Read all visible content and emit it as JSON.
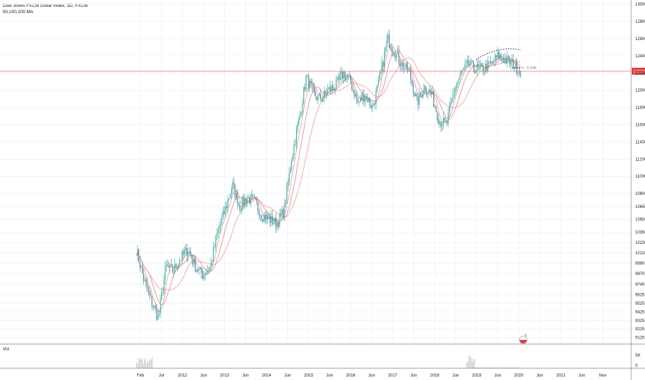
{
  "legend": {
    "title": "Dow Jones FXCM Dollar Index, 3D, FXCM",
    "ma": "50,100,200 MA"
  },
  "volume_label": "Vol",
  "badges": {
    "price": "12222",
    "measure": "0.23K",
    "event_close": "x"
  },
  "colors": {
    "up": "#26a69a",
    "down": "#3e7b8c",
    "ma_fast": "#f28b82",
    "ma_slow": "#e57373",
    "price_line": "#ef5350",
    "price_badge": "#e53935",
    "volume": "#c8c8c8",
    "grid": "#f0f3fa",
    "axis_text": "#131722"
  },
  "chart_data": {
    "type": "line",
    "xlabel": "",
    "ylabel": "",
    "x_ticks": [
      "Feb",
      "Jul",
      "2012",
      "Jun",
      "2013",
      "Jun",
      "2014",
      "Jun",
      "2015",
      "Jun",
      "2016",
      "Jun",
      "2017",
      "Jun",
      "2018",
      "Jun",
      "2019",
      "Jun",
      "2020",
      "Jun",
      "2021",
      "Jun",
      "Nov"
    ],
    "y_ticks": [
      9125,
      9225,
      9325,
      9425,
      9525,
      9625,
      9745,
      9870,
      9990,
      10110,
      10230,
      10350,
      10500,
      10650,
      10800,
      11000,
      11200,
      11400,
      11600,
      11800,
      12000,
      12200,
      12400,
      12600,
      12800,
      13000
    ],
    "ylim": [
      9050,
      13050
    ],
    "volume_ticks": [
      "5K",
      "0"
    ],
    "x": [
      "2011-02",
      "2011-05",
      "2011-07",
      "2011-09",
      "2011-12",
      "2012-02",
      "2012-04",
      "2012-06",
      "2012-08",
      "2012-10",
      "2012-12",
      "2013-02",
      "2013-04",
      "2013-06",
      "2013-08",
      "2013-10",
      "2013-12",
      "2014-02",
      "2014-04",
      "2014-06",
      "2014-08",
      "2014-10",
      "2014-12",
      "2015-02",
      "2015-04",
      "2015-06",
      "2015-08",
      "2015-10",
      "2015-12",
      "2016-02",
      "2016-04",
      "2016-06",
      "2016-08",
      "2016-10",
      "2016-12",
      "2017-02",
      "2017-04",
      "2017-06",
      "2017-08",
      "2017-10",
      "2017-12",
      "2018-02",
      "2018-04",
      "2018-06",
      "2018-08",
      "2018-10",
      "2018-12",
      "2019-02",
      "2019-04",
      "2019-06",
      "2019-08",
      "2019-10",
      "2019-12"
    ],
    "series": [
      {
        "values": [
          10150,
          9800,
          9550,
          9350,
          9950,
          9900,
          10050,
          10150,
          9950,
          9850,
          9950,
          10350,
          10600,
          10900,
          10650,
          10750,
          10700,
          10550,
          10500,
          10450,
          10600,
          11200,
          11650,
          12150,
          11950,
          11900,
          12000,
          12050,
          12200,
          12100,
          11850,
          11950,
          11800,
          12150,
          12600,
          12450,
          12300,
          12200,
          11850,
          12050,
          11950,
          11650,
          11600,
          12000,
          12200,
          12300,
          12250,
          12250,
          12300,
          12400,
          12350,
          12300,
          12222
        ]
      }
    ]
  }
}
